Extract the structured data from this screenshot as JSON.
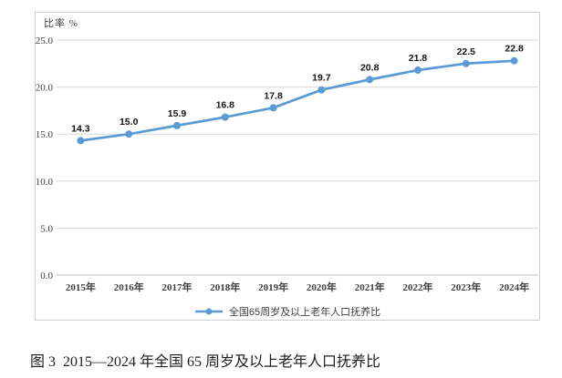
{
  "chart": {
    "axis_title": "比率 %",
    "legend_label": "全国65周岁及以上老年人口抚养比",
    "colors": {
      "line": "#5B9BD5",
      "marker": "#5B9BD5",
      "grid": "#D9D9D9",
      "axis_line": "#C6C6C6",
      "frame_border": "#CFCDCD"
    }
  },
  "chart_data": {
    "type": "line",
    "title": "",
    "categories": [
      "2015年",
      "2016年",
      "2017年",
      "2018年",
      "2019年",
      "2020年",
      "2021年",
      "2022年",
      "2023年",
      "2024年"
    ],
    "series": [
      {
        "name": "全国65周岁及以上老年人口抚养比",
        "values": [
          14.3,
          15.0,
          15.9,
          16.8,
          17.8,
          19.7,
          20.8,
          21.8,
          22.5,
          22.8
        ]
      }
    ],
    "xlabel": "",
    "ylabel": "比率 %",
    "ylim": [
      0.0,
      25.0
    ],
    "ytick_step": 5.0,
    "ytick_labels": [
      "0.0",
      "5.0",
      "10.0",
      "15.0",
      "20.0",
      "25.0"
    ],
    "grid": true,
    "data_labels": true,
    "legend_position": "bottom"
  },
  "caption": "图 3  2015—2024 年全国 65 周岁及以上老年人口抚养比"
}
